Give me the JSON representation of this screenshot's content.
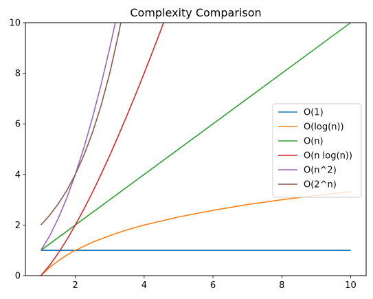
{
  "chart_data": {
    "type": "line",
    "title": "Complexity Comparison",
    "xlabel": "",
    "ylabel": "",
    "xlim": [
      0.55,
      10.45
    ],
    "ylim": [
      0,
      10
    ],
    "xticks": [
      2,
      4,
      6,
      8,
      10
    ],
    "yticks": [
      0,
      2,
      4,
      6,
      8,
      10
    ],
    "grid": false,
    "legend_position": "center-right",
    "series": [
      {
        "name": "O(1)",
        "color": "#1f77b4",
        "x": [
          1,
          2,
          3,
          4,
          5,
          6,
          7,
          8,
          9,
          10
        ],
        "y": [
          1,
          1,
          1,
          1,
          1,
          1,
          1,
          1,
          1,
          1
        ]
      },
      {
        "name": "O(log(n))",
        "color": "#ff7f0e",
        "x": [
          1,
          1.25,
          1.5,
          1.75,
          2,
          2.5,
          3,
          3.5,
          4,
          5,
          6,
          7,
          8,
          9,
          10
        ],
        "y": [
          0,
          0.32,
          0.58,
          0.81,
          1.0,
          1.32,
          1.58,
          1.81,
          2.0,
          2.32,
          2.58,
          2.81,
          3.0,
          3.17,
          3.32
        ]
      },
      {
        "name": "O(n)",
        "color": "#2ca02c",
        "x": [
          1,
          10
        ],
        "y": [
          1,
          10
        ]
      },
      {
        "name": "O(n log(n))",
        "color": "#d62728",
        "x": [
          1,
          1.25,
          1.5,
          1.75,
          2,
          2.25,
          2.5,
          2.75,
          3,
          3.25,
          3.5,
          3.75,
          4,
          4.25,
          4.5,
          4.6
        ],
        "y": [
          0,
          0.4,
          0.88,
          1.41,
          2.0,
          2.63,
          3.3,
          4.01,
          4.75,
          5.53,
          6.33,
          7.15,
          8.0,
          8.87,
          9.76,
          10.13
        ]
      },
      {
        "name": "O(n^2)",
        "color": "#9467bd",
        "x": [
          1,
          1.25,
          1.5,
          1.75,
          2,
          2.25,
          2.5,
          2.75,
          3,
          3.1,
          3.17
        ],
        "y": [
          1,
          1.56,
          2.25,
          3.06,
          4.0,
          5.06,
          6.25,
          7.56,
          9.0,
          9.61,
          10.05
        ]
      },
      {
        "name": "O(2^n)",
        "color": "#8c564b",
        "x": [
          1,
          1.25,
          1.5,
          1.75,
          2,
          2.25,
          2.5,
          2.75,
          3,
          3.25,
          3.32
        ],
        "y": [
          2,
          2.38,
          2.83,
          3.36,
          4.0,
          4.76,
          5.66,
          6.73,
          8.0,
          9.51,
          9.99
        ]
      }
    ]
  }
}
